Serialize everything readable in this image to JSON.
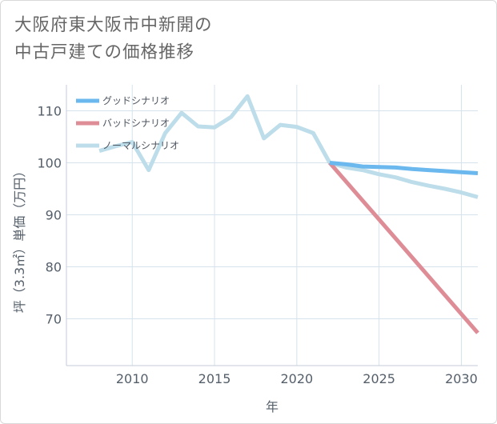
{
  "page": {
    "title_line1": "大阪府東大阪市中新開の",
    "title_line2": "中古戸建ての価格推移"
  },
  "colors": {
    "good": "#6bb8ee",
    "bad": "#de8c96",
    "normal": "#bcdde9",
    "grid": "#d6e2ec",
    "axis": "#555f6a"
  },
  "chart_data": {
    "type": "line",
    "xlabel": "年",
    "ylabel": "坪（3.3㎡）単価（万円）",
    "xlim": [
      2006,
      2031
    ],
    "ylim": [
      61,
      115
    ],
    "xticks": [
      2010,
      2015,
      2020,
      2025,
      2030
    ],
    "yticks": [
      70,
      80,
      90,
      100,
      110
    ],
    "grid": true,
    "legend_position": "top-left",
    "series": [
      {
        "key": "good",
        "name": "グッドシナリオ",
        "x": [
          2022,
          2023,
          2024,
          2025,
          2026,
          2027,
          2028,
          2029,
          2030,
          2031
        ],
        "values": [
          100.0,
          99.7,
          99.3,
          99.2,
          99.1,
          98.8,
          98.6,
          98.4,
          98.2,
          98.0
        ]
      },
      {
        "key": "bad",
        "name": "バッドシナリオ",
        "x": [
          2022,
          2031
        ],
        "values": [
          100.0,
          67.3
        ]
      },
      {
        "key": "normal",
        "name": "ノーマルシナリオ",
        "x": [
          2008,
          2009,
          2010,
          2011,
          2012,
          2013,
          2014,
          2015,
          2016,
          2017,
          2018,
          2019,
          2020,
          2021,
          2022,
          2023,
          2024,
          2025,
          2026,
          2027,
          2028,
          2029,
          2030,
          2031
        ],
        "values": [
          102.3,
          103.2,
          104.0,
          98.6,
          105.7,
          109.6,
          107.0,
          106.8,
          108.8,
          112.8,
          104.7,
          107.3,
          106.9,
          105.7,
          100.0,
          99.1,
          98.6,
          97.8,
          97.2,
          96.3,
          95.6,
          95.0,
          94.3,
          93.4
        ]
      }
    ]
  }
}
